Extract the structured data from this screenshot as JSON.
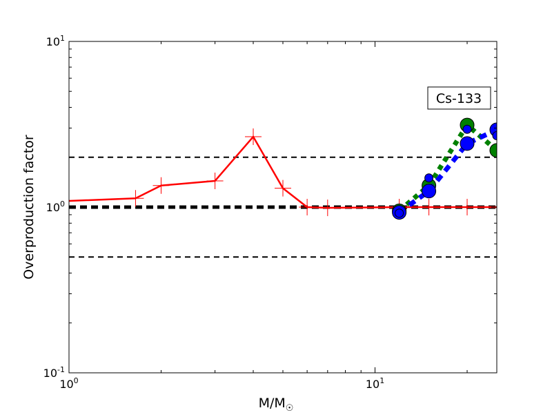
{
  "chart_data": {
    "type": "line",
    "title": "",
    "xlabel": "M/M",
    "xlabel_sub": "☉",
    "ylabel": "Overproduction factor",
    "xscale": "log",
    "yscale": "log",
    "xlim": [
      1,
      25
    ],
    "ylim": [
      0.1,
      10
    ],
    "x_ticks": [
      {
        "base": "10",
        "exp": "0",
        "value": 1
      },
      {
        "base": "10",
        "exp": "1",
        "value": 10
      }
    ],
    "y_ticks": [
      {
        "base": "10",
        "exp": "-1",
        "value": 0.1
      },
      {
        "base": "10",
        "exp": "0",
        "value": 1
      },
      {
        "base": "10",
        "exp": "1",
        "value": 10
      }
    ],
    "grid": false,
    "annotation": "Cs-133",
    "reference_lines": [
      {
        "y": 2,
        "style": "dashed",
        "color": "#000000"
      },
      {
        "y": 1,
        "style": "thick-dashed",
        "color": "#000000"
      },
      {
        "y": 0.5,
        "style": "dashed",
        "color": "#000000"
      }
    ],
    "series": [
      {
        "color": "#ff0000",
        "style": "solid",
        "marker": "plus",
        "x": [
          1.0,
          1.65,
          2,
          3,
          4,
          5,
          6,
          7,
          12,
          15,
          20,
          25
        ],
        "y": [
          1.09,
          1.13,
          1.35,
          1.44,
          2.66,
          1.3,
          1.0,
          0.99,
          1.0,
          1.0,
          1.0,
          1.0
        ]
      },
      {
        "color": "#008000",
        "style": "dotted",
        "marker": "circle",
        "x": [
          12,
          15,
          20,
          25
        ],
        "y": [
          0.95,
          1.35,
          3.13,
          2.2
        ]
      },
      {
        "color": "#0000ff",
        "style": "dashed",
        "marker": "circle",
        "x": [
          12,
          15,
          20,
          25
        ],
        "y": [
          0.93,
          1.25,
          2.42,
          2.93
        ]
      },
      {
        "color": "#0000ff",
        "style": "none",
        "marker": "small-circle",
        "x": [
          12,
          15,
          20,
          25
        ],
        "y": [
          0.92,
          1.5,
          2.95,
          2.7
        ]
      }
    ]
  }
}
